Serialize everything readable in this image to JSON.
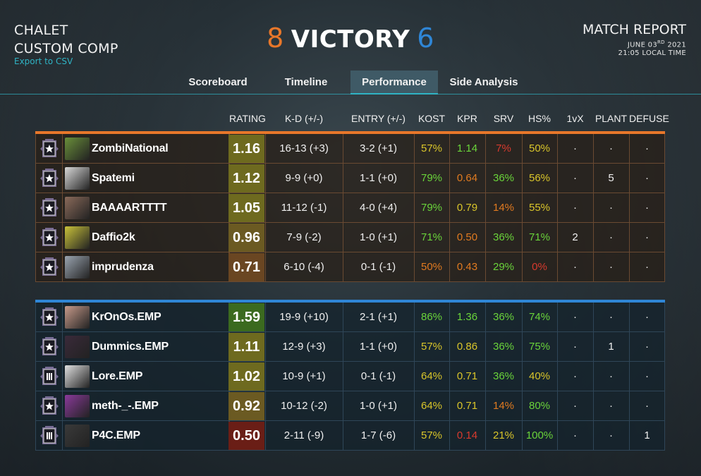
{
  "header": {
    "map": "CHALET",
    "mode": "CUSTOM COMP",
    "export_label": "Export to CSV",
    "score_orange": "8",
    "result": "VICTORY",
    "score_blue": "6",
    "report_title": "MATCH REPORT",
    "date_prefix": "JUNE 03",
    "date_suffix": "RD",
    "year": " 2021",
    "time": "21:05 LOCAL TIME"
  },
  "tabs": [
    {
      "label": "Scoreboard"
    },
    {
      "label": "Timeline"
    },
    {
      "label": "Performance",
      "active": true
    },
    {
      "label": "Side Analysis"
    }
  ],
  "columns": [
    "RATING",
    "K-D (+/-)",
    "ENTRY (+/-)",
    "KOST",
    "KPR",
    "SRV",
    "HS%",
    "1vX",
    "PLANT",
    "DEFUSE"
  ],
  "colors": {
    "orange_team": "#e8772a",
    "blue_team": "#2f86d6",
    "stat_green": "#6ad43a",
    "stat_yellow": "#d9c52a",
    "stat_orange": "#e07a20",
    "stat_red": "#d83a2e"
  },
  "teams": [
    {
      "side": "orange",
      "players": [
        {
          "name": "ZombiNational",
          "rating": "1.16",
          "rating_tier": "olive",
          "kd": "16-13 (+3)",
          "entry": "3-2 (+1)",
          "kost": "57%",
          "kost_c": "yellow",
          "kpr": "1.14",
          "kpr_c": "green",
          "srv": "7%",
          "srv_c": "red",
          "hs": "50%",
          "hs_c": "yellow",
          "onevx": "·",
          "plant": "·",
          "defuse": "·",
          "badge": "shield"
        },
        {
          "name": "Spatemi",
          "rating": "1.12",
          "rating_tier": "olive",
          "kd": "9-9 (+0)",
          "entry": "1-1 (+0)",
          "kost": "79%",
          "kost_c": "green",
          "kpr": "0.64",
          "kpr_c": "orange",
          "srv": "36%",
          "srv_c": "green",
          "hs": "56%",
          "hs_c": "yellow",
          "onevx": "·",
          "plant": "5",
          "defuse": "·",
          "badge": "shield"
        },
        {
          "name": "BAAAARTTTT",
          "rating": "1.05",
          "rating_tier": "olive",
          "kd": "11-12 (-1)",
          "entry": "4-0 (+4)",
          "kost": "79%",
          "kost_c": "green",
          "kpr": "0.79",
          "kpr_c": "yellow",
          "srv": "14%",
          "srv_c": "orange",
          "hs": "55%",
          "hs_c": "yellow",
          "onevx": "·",
          "plant": "·",
          "defuse": "·",
          "badge": "shield"
        },
        {
          "name": "Daffio2k",
          "rating": "0.96",
          "rating_tier": "brownolive",
          "kd": "7-9 (-2)",
          "entry": "1-0 (+1)",
          "kost": "71%",
          "kost_c": "green",
          "kpr": "0.50",
          "kpr_c": "orange",
          "srv": "36%",
          "srv_c": "green",
          "hs": "71%",
          "hs_c": "green",
          "onevx": "2",
          "plant": "·",
          "defuse": "·",
          "badge": "shield"
        },
        {
          "name": "imprudenza",
          "rating": "0.71",
          "rating_tier": "brown",
          "kd": "6-10 (-4)",
          "entry": "0-1 (-1)",
          "kost": "50%",
          "kost_c": "orange",
          "kpr": "0.43",
          "kpr_c": "orange",
          "srv": "29%",
          "srv_c": "green",
          "hs": "0%",
          "hs_c": "red",
          "onevx": "·",
          "plant": "·",
          "defuse": "·",
          "badge": "shield"
        }
      ]
    },
    {
      "side": "blue",
      "players": [
        {
          "name": "KrOnOs.EMP",
          "rating": "1.59",
          "rating_tier": "green",
          "kd": "19-9 (+10)",
          "entry": "2-1 (+1)",
          "kost": "86%",
          "kost_c": "green",
          "kpr": "1.36",
          "kpr_c": "green",
          "srv": "36%",
          "srv_c": "green",
          "hs": "74%",
          "hs_c": "green",
          "onevx": "·",
          "plant": "·",
          "defuse": "·",
          "badge": "shield"
        },
        {
          "name": "Dummics.EMP",
          "rating": "1.11",
          "rating_tier": "olive",
          "kd": "12-9 (+3)",
          "entry": "1-1 (+0)",
          "kost": "57%",
          "kost_c": "yellow",
          "kpr": "0.86",
          "kpr_c": "yellow",
          "srv": "36%",
          "srv_c": "green",
          "hs": "75%",
          "hs_c": "green",
          "onevx": "·",
          "plant": "1",
          "defuse": "·",
          "badge": "shield"
        },
        {
          "name": "Lore.EMP",
          "rating": "1.02",
          "rating_tier": "olive",
          "kd": "10-9 (+1)",
          "entry": "0-1 (-1)",
          "kost": "64%",
          "kost_c": "yellow",
          "kpr": "0.71",
          "kpr_c": "yellow",
          "srv": "36%",
          "srv_c": "green",
          "hs": "40%",
          "hs_c": "yellow",
          "onevx": "·",
          "plant": "·",
          "defuse": "·",
          "badge": "shield-bars"
        },
        {
          "name": "meth-_-.EMP",
          "rating": "0.92",
          "rating_tier": "brownolive",
          "kd": "10-12 (-2)",
          "entry": "1-0 (+1)",
          "kost": "64%",
          "kost_c": "yellow",
          "kpr": "0.71",
          "kpr_c": "yellow",
          "srv": "14%",
          "srv_c": "orange",
          "hs": "80%",
          "hs_c": "green",
          "onevx": "·",
          "plant": "·",
          "defuse": "·",
          "badge": "shield"
        },
        {
          "name": "P4C.EMP",
          "rating": "0.50",
          "rating_tier": "red",
          "kd": "2-11 (-9)",
          "entry": "1-7 (-6)",
          "kost": "57%",
          "kost_c": "yellow",
          "kpr": "0.14",
          "kpr_c": "red",
          "srv": "21%",
          "srv_c": "yellow",
          "hs": "100%",
          "hs_c": "green",
          "onevx": "·",
          "plant": "·",
          "defuse": "1",
          "badge": "shield-bars"
        }
      ]
    }
  ]
}
